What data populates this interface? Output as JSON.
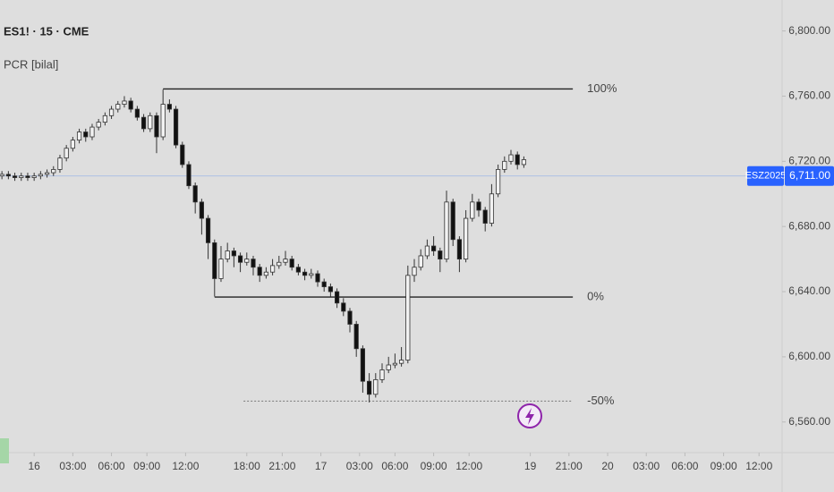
{
  "chart_data": {
    "type": "candlestick",
    "title": "ES1! · 15 · CME",
    "subtitle": "PCR [bilal]",
    "symbol": "ESZ2025",
    "last_price": 6711,
    "last_price_label": "6,711.00",
    "up_color": "#f2f2f2",
    "down_color": "#111111",
    "ylim": [
      6539,
      6819
    ],
    "yticks": [
      {
        "value": 6560,
        "label": "6,560.00"
      },
      {
        "value": 6600,
        "label": "6,600.00"
      },
      {
        "value": 6640,
        "label": "6,640.00"
      },
      {
        "value": 6680,
        "label": "6,680.00"
      },
      {
        "value": 6720,
        "label": "6,720.00"
      },
      {
        "value": 6760,
        "label": "6,760.00"
      },
      {
        "value": 6800,
        "label": "6,800.00"
      }
    ],
    "xlim": [
      -0.3,
      120.8
    ],
    "xticks": [
      {
        "value": 5,
        "label": "16"
      },
      {
        "value": 11,
        "label": "03:00"
      },
      {
        "value": 17,
        "label": "06:00"
      },
      {
        "value": 22.5,
        "label": "09:00"
      },
      {
        "value": 28.5,
        "label": "12:00"
      },
      {
        "value": 38,
        "label": "18:00"
      },
      {
        "value": 43.5,
        "label": "21:00"
      },
      {
        "value": 49.5,
        "label": "17"
      },
      {
        "value": 55.5,
        "label": "03:00"
      },
      {
        "value": 61,
        "label": "06:00"
      },
      {
        "value": 67,
        "label": "09:00"
      },
      {
        "value": 72.5,
        "label": "12:00"
      },
      {
        "value": 82,
        "label": "19"
      },
      {
        "value": 88,
        "label": "21:00"
      },
      {
        "value": 94,
        "label": "20"
      },
      {
        "value": 100,
        "label": "03:00"
      },
      {
        "value": 106,
        "label": "06:00"
      },
      {
        "value": 112,
        "label": "09:00"
      },
      {
        "value": 117.5,
        "label": "12:00"
      }
    ],
    "levels": [
      {
        "label": "100%",
        "value": 6764.4,
        "from": 25,
        "to": 88.6,
        "dashed": false
      },
      {
        "label": "0%",
        "value": 6636.7,
        "from": 33,
        "to": 88.6,
        "dashed": false
      },
      {
        "label": "-50%",
        "value": 6572.8,
        "from": 37.5,
        "to": 88.6,
        "dashed": true
      }
    ],
    "ohlc": [
      [
        6711,
        6714,
        6709,
        6712
      ],
      [
        6712,
        6714,
        6709,
        6711
      ],
      [
        6711,
        6713,
        6708,
        6710
      ],
      [
        6710,
        6713,
        6708,
        6711
      ],
      [
        6711,
        6713,
        6708,
        6710
      ],
      [
        6710,
        6713,
        6708,
        6711
      ],
      [
        6711,
        6714,
        6709,
        6712
      ],
      [
        6712,
        6715,
        6710,
        6713
      ],
      [
        6713,
        6717,
        6711,
        6715
      ],
      [
        6715,
        6724,
        6713,
        6722
      ],
      [
        6722,
        6730,
        6720,
        6728
      ],
      [
        6728,
        6735,
        6726,
        6733
      ],
      [
        6733,
        6740,
        6731,
        6738
      ],
      [
        6738,
        6740,
        6732,
        6735
      ],
      [
        6735,
        6743,
        6733,
        6741
      ],
      [
        6741,
        6746,
        6739,
        6744
      ],
      [
        6744,
        6750,
        6742,
        6748
      ],
      [
        6748,
        6754,
        6746,
        6752
      ],
      [
        6752,
        6757,
        6750,
        6755
      ],
      [
        6755,
        6760,
        6753,
        6757
      ],
      [
        6757,
        6759,
        6750,
        6752
      ],
      [
        6752,
        6754,
        6745,
        6747
      ],
      [
        6747,
        6749,
        6738,
        6740
      ],
      [
        6740,
        6750,
        6738,
        6748
      ],
      [
        6748,
        6750,
        6725,
        6735
      ],
      [
        6735,
        6764,
        6733,
        6755
      ],
      [
        6755,
        6758,
        6750,
        6752
      ],
      [
        6752,
        6754,
        6728,
        6730
      ],
      [
        6730,
        6732,
        6716,
        6718
      ],
      [
        6718,
        6720,
        6703,
        6705
      ],
      [
        6705,
        6707,
        6688,
        6695
      ],
      [
        6695,
        6697,
        6675,
        6685
      ],
      [
        6685,
        6687,
        6660,
        6670
      ],
      [
        6670,
        6672,
        6637,
        6648
      ],
      [
        6648,
        6668,
        6646,
        6660
      ],
      [
        6660,
        6670,
        6658,
        6665
      ],
      [
        6665,
        6667,
        6655,
        6662
      ],
      [
        6662,
        6664,
        6652,
        6658
      ],
      [
        6658,
        6664,
        6656,
        6660
      ],
      [
        6660,
        6662,
        6650,
        6655
      ],
      [
        6655,
        6657,
        6646,
        6650
      ],
      [
        6650,
        6655,
        6648,
        6652
      ],
      [
        6652,
        6660,
        6650,
        6656
      ],
      [
        6656,
        6662,
        6654,
        6658
      ],
      [
        6658,
        6665,
        6656,
        6660
      ],
      [
        6660,
        6662,
        6653,
        6655
      ],
      [
        6655,
        6657,
        6650,
        6652
      ],
      [
        6652,
        6654,
        6647,
        6650
      ],
      [
        6650,
        6654,
        6648,
        6651
      ],
      [
        6651,
        6653,
        6643,
        6646
      ],
      [
        6646,
        6648,
        6640,
        6643
      ],
      [
        6643,
        6645,
        6637,
        6640
      ],
      [
        6640,
        6642,
        6630,
        6633
      ],
      [
        6633,
        6636,
        6625,
        6628
      ],
      [
        6628,
        6630,
        6615,
        6620
      ],
      [
        6620,
        6622,
        6600,
        6605
      ],
      [
        6605,
        6607,
        6578,
        6585
      ],
      [
        6585,
        6590,
        6572,
        6577
      ],
      [
        6577,
        6590,
        6575,
        6586
      ],
      [
        6586,
        6596,
        6584,
        6592
      ],
      [
        6592,
        6600,
        6590,
        6595
      ],
      [
        6595,
        6602,
        6593,
        6596
      ],
      [
        6596,
        6606,
        6594,
        6598
      ],
      [
        6598,
        6656,
        6596,
        6650
      ],
      [
        6650,
        6660,
        6646,
        6655
      ],
      [
        6655,
        6666,
        6653,
        6662
      ],
      [
        6662,
        6672,
        6660,
        6668
      ],
      [
        6668,
        6674,
        6662,
        6665
      ],
      [
        6665,
        6667,
        6652,
        6660
      ],
      [
        6660,
        6702,
        6658,
        6695
      ],
      [
        6695,
        6697,
        6668,
        6672
      ],
      [
        6672,
        6674,
        6652,
        6660
      ],
      [
        6660,
        6690,
        6658,
        6685
      ],
      [
        6685,
        6700,
        6683,
        6695
      ],
      [
        6695,
        6697,
        6686,
        6690
      ],
      [
        6690,
        6692,
        6677,
        6682
      ],
      [
        6682,
        6706,
        6680,
        6700
      ],
      [
        6700,
        6718,
        6698,
        6715
      ],
      [
        6715,
        6723,
        6713,
        6720
      ],
      [
        6720,
        6727,
        6718,
        6724
      ],
      [
        6724,
        6726,
        6715,
        6718
      ],
      [
        6718,
        6723,
        6716,
        6721
      ]
    ]
  }
}
